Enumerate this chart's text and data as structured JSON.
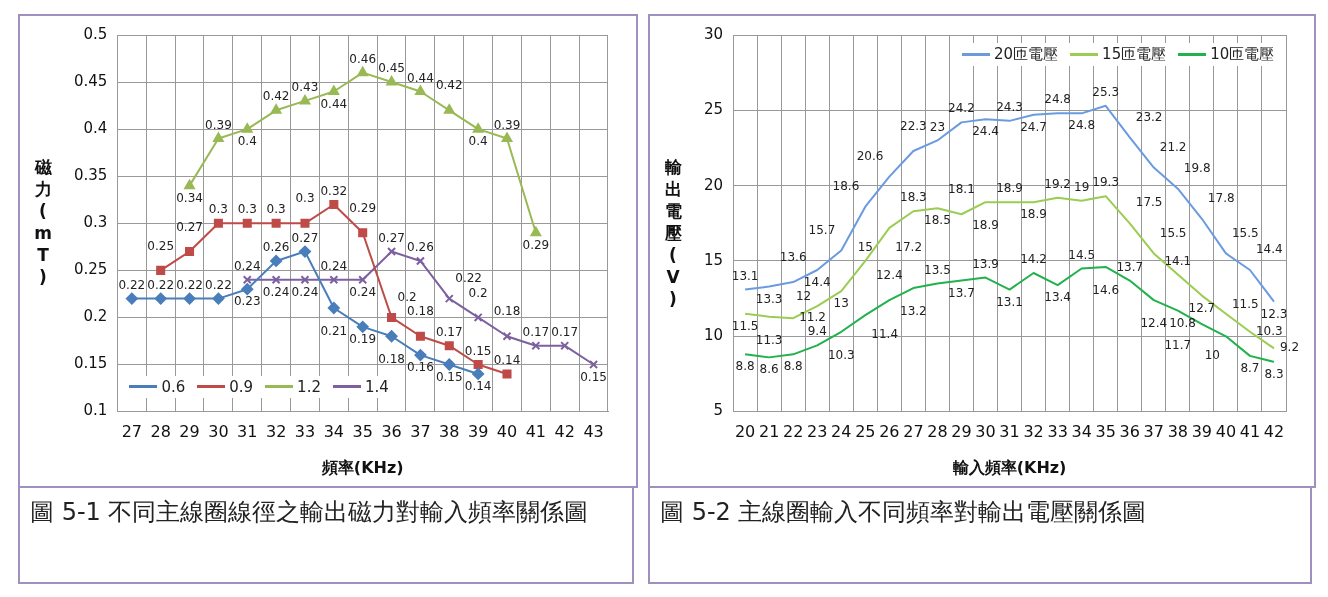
{
  "chart_data": [
    {
      "type": "line",
      "xlabel": "頻率(KHz)",
      "ylabel": "磁力(mT)",
      "annotations": [
        "圖  5-1 不同主線圈線徑之輸出磁力對輸入頻率關係圖"
      ],
      "categories": [
        "27",
        "28",
        "29",
        "30",
        "31",
        "32",
        "33",
        "34",
        "35",
        "36",
        "37",
        "38",
        "39",
        "40",
        "41",
        "42",
        "43"
      ],
      "ylim": [
        0.1,
        0.5
      ],
      "yticks": [
        0.1,
        0.15,
        0.2,
        0.25,
        0.3,
        0.35,
        0.4,
        0.45,
        0.5
      ],
      "grid": true,
      "legend": "bottom left",
      "data_labels": true,
      "line_style": "solid",
      "series": [
        {
          "name": "0.6",
          "color": "#4a7ebb",
          "marker": "diamond",
          "values": [
            0.22,
            0.22,
            0.22,
            0.22,
            0.23,
            0.26,
            0.27,
            0.21,
            0.19,
            0.18,
            0.16,
            0.15,
            0.14,
            null,
            null,
            null,
            null
          ]
        },
        {
          "name": "0.9",
          "color": "#be4b48",
          "marker": "square",
          "values": [
            null,
            0.25,
            0.27,
            0.3,
            0.3,
            0.3,
            0.3,
            0.32,
            0.29,
            0.2,
            0.18,
            0.17,
            0.15,
            0.14,
            null,
            null,
            null
          ]
        },
        {
          "name": "1.2",
          "color": "#98b954",
          "marker": "triangle",
          "values": [
            null,
            null,
            0.34,
            0.39,
            0.4,
            0.42,
            0.43,
            0.44,
            0.46,
            0.45,
            0.44,
            0.42,
            0.4,
            0.39,
            0.29,
            null,
            null
          ]
        },
        {
          "name": "1.4",
          "color": "#7d60a0",
          "marker": "cross",
          "values": [
            null,
            null,
            null,
            null,
            0.24,
            0.24,
            0.24,
            0.24,
            0.24,
            0.27,
            0.26,
            0.22,
            0.2,
            0.18,
            0.17,
            0.17,
            0.15
          ]
        }
      ]
    },
    {
      "type": "line",
      "xlabel": "輸入頻率(KHz)",
      "ylabel": "輸出電壓(V)",
      "annotations": [
        "圖  5-2  主線圈輸入不同頻率對輸出電壓關係圖"
      ],
      "categories": [
        "20",
        "21",
        "22",
        "23",
        "24",
        "25",
        "26",
        "27",
        "28",
        "29",
        "30",
        "31",
        "32",
        "33",
        "34",
        "35",
        "36",
        "37",
        "38",
        "39",
        "40",
        "41",
        "42"
      ],
      "ylim": [
        5,
        30
      ],
      "yticks": [
        5,
        10,
        15,
        20,
        25,
        30
      ],
      "grid": true,
      "legend": "top right",
      "data_labels": true,
      "marker": "none",
      "line_style": "solid",
      "series": [
        {
          "name": "20匝電壓",
          "color": "#6a9be0",
          "values": [
            13.1,
            13.3,
            13.6,
            14.4,
            15.7,
            18.6,
            20.6,
            22.3,
            23,
            24.2,
            24.4,
            24.3,
            24.7,
            24.8,
            24.8,
            25.3,
            23.2,
            21.2,
            19.8,
            17.8,
            15.5,
            14.4,
            12.3
          ]
        },
        {
          "name": "15匝電壓",
          "color": "#9acd52",
          "values": [
            11.5,
            11.3,
            11.2,
            12,
            13,
            15,
            17.2,
            18.3,
            18.5,
            18.1,
            18.9,
            18.9,
            18.9,
            19.2,
            19,
            19.3,
            17.5,
            15.5,
            14.1,
            12.7,
            11.5,
            10.3,
            9.2
          ]
        },
        {
          "name": "10匝電壓",
          "color": "#22b14c",
          "values": [
            8.8,
            8.6,
            8.8,
            9.4,
            10.3,
            11.4,
            12.4,
            13.2,
            13.5,
            13.7,
            13.9,
            13.1,
            14.2,
            13.4,
            14.5,
            14.6,
            13.7,
            12.4,
            11.7,
            10.8,
            10,
            8.7,
            8.3
          ]
        }
      ]
    }
  ]
}
